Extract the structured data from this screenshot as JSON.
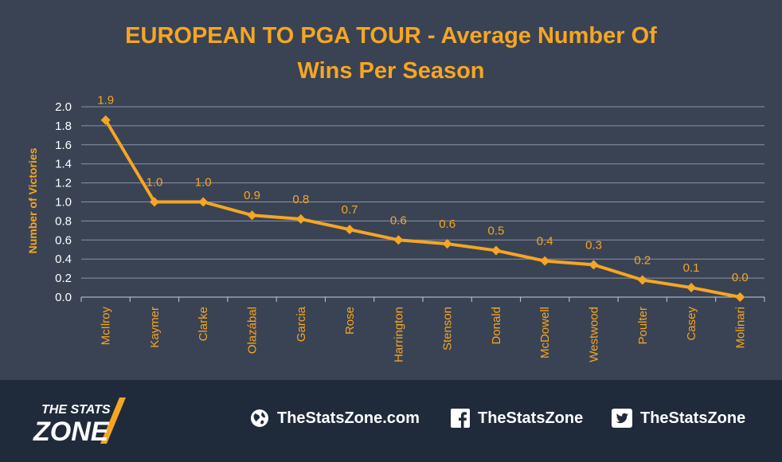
{
  "chart_data": {
    "type": "line",
    "title_lines": [
      "EUROPEAN TO PGA TOUR - Average Number Of",
      "Wins Per Season"
    ],
    "ylabel": "Number of Victories",
    "xlabel": "",
    "ylim": [
      0,
      2.0
    ],
    "yticks": [
      "0.0",
      "0.2",
      "0.4",
      "0.6",
      "0.8",
      "1.0",
      "1.2",
      "1.4",
      "1.6",
      "1.8",
      "2.0"
    ],
    "categories": [
      "McIlroy",
      "Kaymer",
      "Clarke",
      "Olazábal",
      "Garcia",
      "Rose",
      "Harrington",
      "Stenson",
      "Donald",
      "McDowell",
      "Westwood",
      "Poulter",
      "Casey",
      "Molinari"
    ],
    "values": [
      1.86,
      1.0,
      1.0,
      0.86,
      0.82,
      0.71,
      0.6,
      0.56,
      0.49,
      0.38,
      0.34,
      0.18,
      0.1,
      0.0
    ],
    "data_labels": [
      "1.9",
      "1.0",
      "1.0",
      "0.9",
      "0.8",
      "0.7",
      "0.6",
      "0.6",
      "0.5",
      "0.4",
      "0.3",
      "0.2",
      "0.1",
      "0.0"
    ],
    "grid": true,
    "legend": "none",
    "line_color": "#f5a623",
    "background_color": "#3a4354"
  },
  "footer": {
    "logo_line1": "THE STATS",
    "logo_line2": "ZONE",
    "website": "TheStatsZone.com",
    "facebook": "TheStatsZone",
    "twitter": "TheStatsZone",
    "icons": [
      "globe-icon",
      "facebook-icon",
      "twitter-icon"
    ]
  }
}
